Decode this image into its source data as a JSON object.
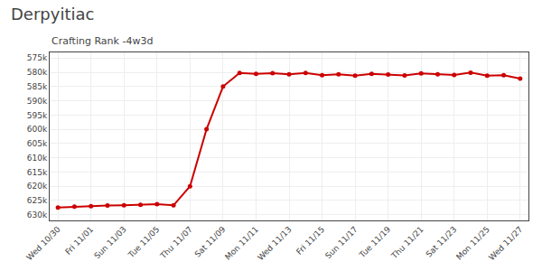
{
  "chart_data": {
    "type": "line",
    "title": "Derpyitiac",
    "subtitle": "Crafting Rank -4w3d",
    "categories": [
      "Wed 10/30",
      null,
      "Fri 11/01",
      null,
      "Sun 11/03",
      null,
      "Tue 11/05",
      null,
      "Thu 11/07",
      null,
      "Sat 11/09",
      null,
      "Mon 11/11",
      null,
      "Wed 11/13",
      null,
      "Fri 11/15",
      null,
      "Sun 11/17",
      null,
      "Tue 11/19",
      null,
      "Thu 11/21",
      null,
      "Sat 11/23",
      null,
      "Mon 11/25",
      null,
      "Wed 11/27"
    ],
    "values": [
      627500,
      627200,
      627000,
      626800,
      626700,
      626500,
      626300,
      626700,
      620000,
      600000,
      585000,
      580200,
      580500,
      580300,
      580700,
      580200,
      581000,
      580700,
      581200,
      580500,
      580800,
      581100,
      580400,
      580700,
      580900,
      580100,
      581200,
      581000,
      582200
    ],
    "color": "#cc0000",
    "marker": "circle",
    "line_style": "solid",
    "ylim": [
      632000,
      573000
    ],
    "yticks": [
      {
        "value": 575000,
        "label": "575k"
      },
      {
        "value": 580000,
        "label": "580k"
      },
      {
        "value": 585000,
        "label": "585k"
      },
      {
        "value": 590000,
        "label": "590k"
      },
      {
        "value": 595000,
        "label": "595k"
      },
      {
        "value": 600000,
        "label": "600k"
      },
      {
        "value": 605000,
        "label": "605k"
      },
      {
        "value": 610000,
        "label": "610k"
      },
      {
        "value": 615000,
        "label": "615k"
      },
      {
        "value": 620000,
        "label": "620k"
      },
      {
        "value": 625000,
        "label": "625k"
      },
      {
        "value": 630000,
        "label": "630k"
      }
    ],
    "grid": true
  }
}
